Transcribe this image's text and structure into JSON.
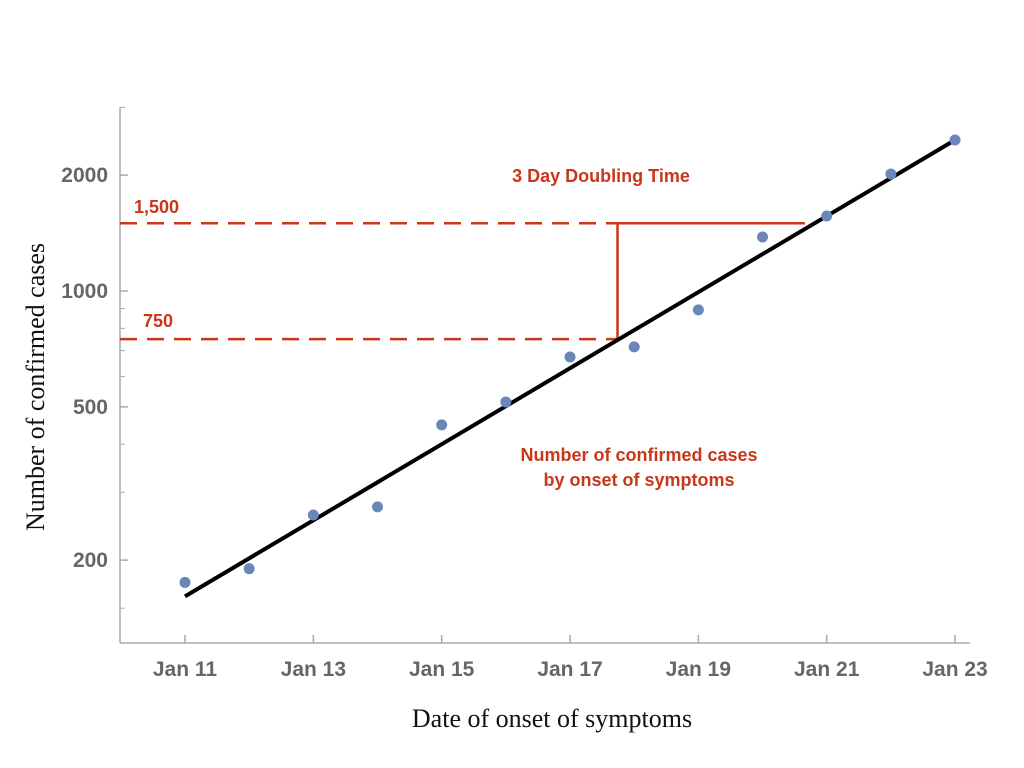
{
  "chart_data": {
    "type": "scatter",
    "title": "",
    "xlabel": "Date of onset of symptoms",
    "ylabel": "Number of confirmed cases",
    "y_scale": "log",
    "ylim": [
      122,
      3000
    ],
    "xlim": [
      "Jan 10",
      "Jan 23"
    ],
    "grid": false,
    "x_ticks": [
      "Jan 11",
      "Jan 13",
      "Jan 15",
      "Jan 17",
      "Jan 19",
      "Jan 21",
      "Jan 23"
    ],
    "y_ticks": [
      200,
      500,
      1000,
      2000
    ],
    "y_tick_labels": [
      "200",
      "500",
      "1000",
      "2000"
    ],
    "y_minor_ticks": [
      150,
      300,
      400,
      600,
      700,
      800,
      900,
      3000
    ],
    "points": {
      "x": [
        "Jan 11",
        "Jan 12",
        "Jan 13",
        "Jan 14",
        "Jan 15",
        "Jan 16",
        "Jan 17",
        "Jan 18",
        "Jan 19",
        "Jan 20",
        "Jan 21",
        "Jan 22",
        "Jan 23"
      ],
      "y": [
        175,
        190,
        262,
        275,
        449,
        515,
        674,
        716,
        893,
        1381,
        1566,
        2013,
        2467
      ],
      "color": "#6a86bb"
    },
    "fit_line": {
      "x": [
        "Jan 11",
        "Jan 23"
      ],
      "y": [
        161,
        2467
      ],
      "color": "#000000"
    },
    "annotations": {
      "color": "#c8371a",
      "doubling_title": "3 Day Doubling Time",
      "level_high": {
        "value": 1500,
        "label": "1,500"
      },
      "level_low": {
        "value": 750,
        "label": "750"
      },
      "doubling_from_day": 17.74,
      "doubling_to_day": 20.66,
      "series_label_line1": "Number of confirmed cases",
      "series_label_line2": "by onset of symptoms"
    }
  }
}
